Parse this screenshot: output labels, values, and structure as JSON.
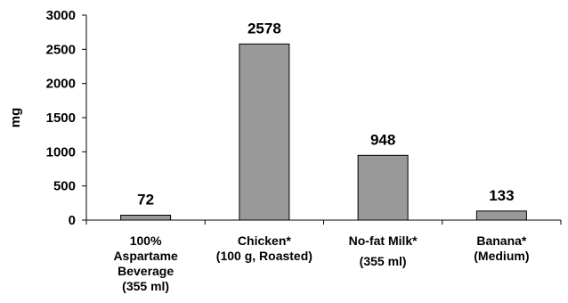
{
  "chart_data": {
    "type": "bar",
    "title": "",
    "xlabel": "",
    "ylabel": "mg",
    "ylim": [
      0,
      3000
    ],
    "yticks": [
      0,
      500,
      1000,
      1500,
      2000,
      2500,
      3000
    ],
    "grid": false,
    "legend": "none",
    "categories": [
      [
        "100%",
        "Aspartame",
        "Beverage",
        "(355 ml)"
      ],
      [
        "Chicken*",
        "(100 g, Roasted)"
      ],
      [
        "No-fat Milk*",
        "(355 ml)"
      ],
      [
        "Banana*",
        "(Medium)"
      ]
    ],
    "values": [
      72,
      2578,
      948,
      133
    ],
    "data_labels": [
      "72",
      "2578",
      "948",
      "133"
    ],
    "colors": {
      "bar_fill": "#999999",
      "bar_stroke": "#000000",
      "axis": "#000000"
    }
  }
}
